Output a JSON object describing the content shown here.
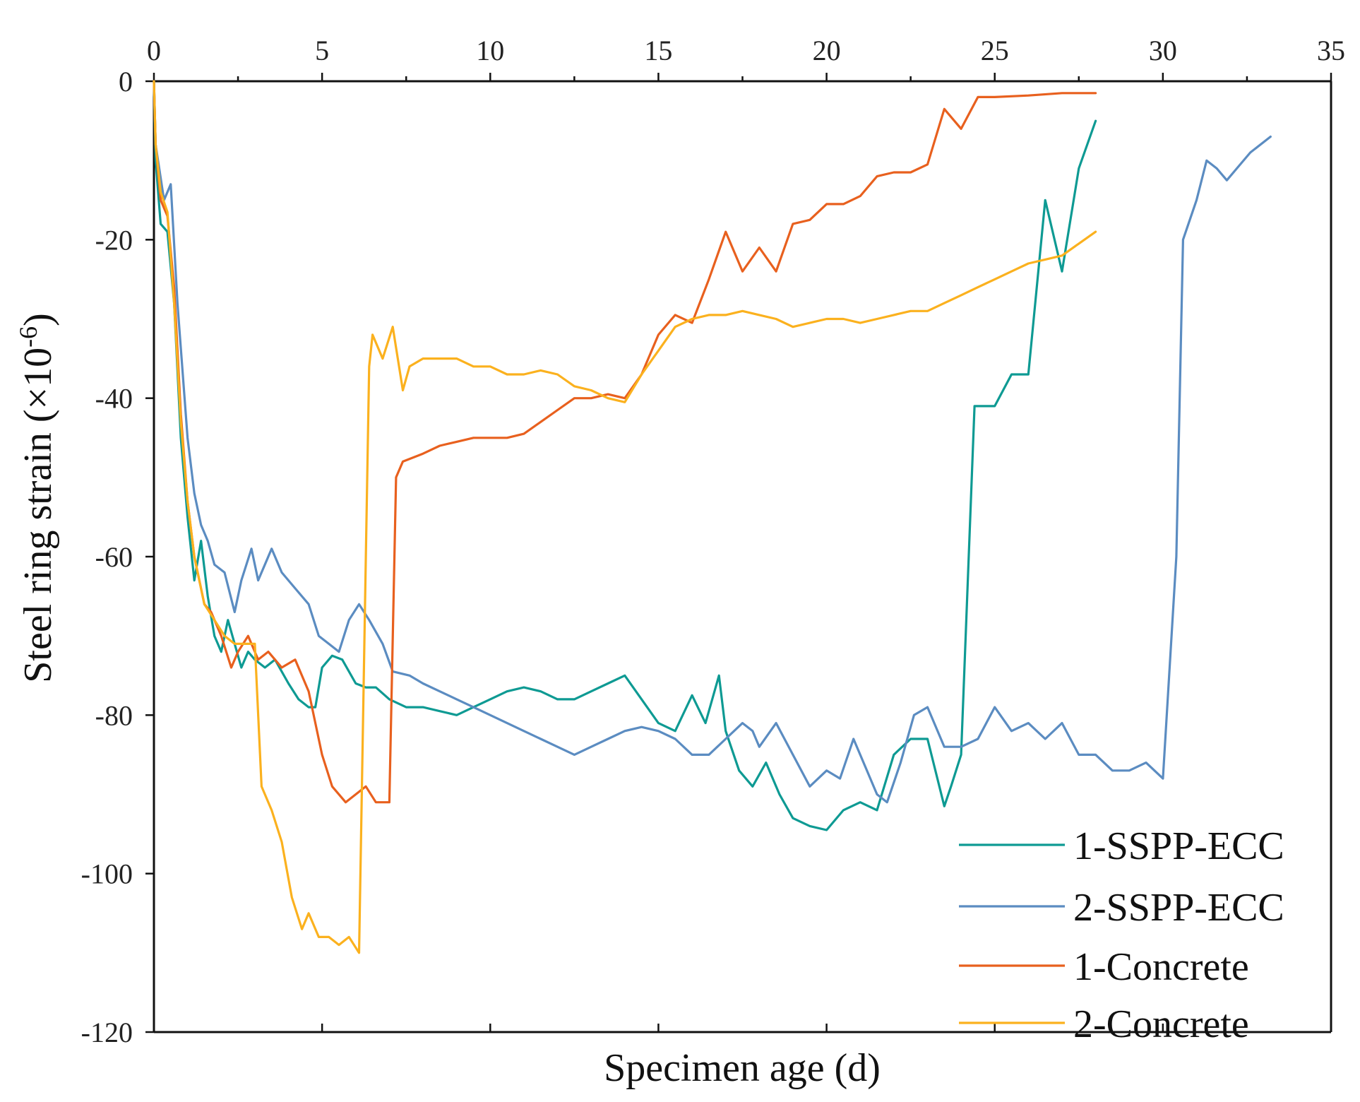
{
  "chart_data": {
    "type": "line",
    "title": "",
    "xlabel": "Specimen age (d)",
    "ylabel_main": "Steel ring strain (×10",
    "ylabel_sup": "-6",
    "ylabel_close": ")",
    "xlim": [
      0,
      35
    ],
    "ylim": [
      -120,
      0
    ],
    "x_ticks": [
      0,
      5,
      10,
      15,
      20,
      25,
      30,
      35
    ],
    "y_ticks": [
      0,
      -20,
      -40,
      -60,
      -80,
      -100,
      -120
    ],
    "x_tick_labels": [
      "0",
      "5",
      "10",
      "15",
      "20",
      "25",
      "30",
      "35"
    ],
    "y_tick_labels": [
      "0",
      "-20",
      "-40",
      "-60",
      "-80",
      "-100",
      "-120"
    ],
    "legend_position": "bottom-right",
    "series": [
      {
        "name": "1-SSPP-ECC",
        "color": "#0e9a93",
        "points": [
          [
            0,
            0
          ],
          [
            0.05,
            -10
          ],
          [
            0.2,
            -18
          ],
          [
            0.4,
            -19
          ],
          [
            0.6,
            -28
          ],
          [
            0.8,
            -45
          ],
          [
            1,
            -55
          ],
          [
            1.2,
            -63
          ],
          [
            1.4,
            -58
          ],
          [
            1.6,
            -65
          ],
          [
            1.8,
            -70
          ],
          [
            2,
            -72
          ],
          [
            2.2,
            -68
          ],
          [
            2.4,
            -71
          ],
          [
            2.6,
            -74
          ],
          [
            2.8,
            -72
          ],
          [
            3,
            -73
          ],
          [
            3.3,
            -74
          ],
          [
            3.6,
            -73
          ],
          [
            4,
            -76
          ],
          [
            4.3,
            -78
          ],
          [
            4.6,
            -79
          ],
          [
            4.8,
            -79
          ],
          [
            5,
            -74
          ],
          [
            5.3,
            -72.5
          ],
          [
            5.6,
            -73
          ],
          [
            6,
            -76
          ],
          [
            6.3,
            -76.5
          ],
          [
            6.6,
            -76.5
          ],
          [
            7,
            -78
          ],
          [
            7.5,
            -79
          ],
          [
            8,
            -79
          ],
          [
            8.5,
            -79.5
          ],
          [
            9,
            -80
          ],
          [
            9.5,
            -79
          ],
          [
            10,
            -78
          ],
          [
            10.5,
            -77
          ],
          [
            11,
            -76.5
          ],
          [
            11.5,
            -77
          ],
          [
            12,
            -78
          ],
          [
            12.5,
            -78
          ],
          [
            13,
            -77
          ],
          [
            13.5,
            -76
          ],
          [
            14,
            -75
          ],
          [
            14.5,
            -78
          ],
          [
            15,
            -81
          ],
          [
            15.5,
            -82
          ],
          [
            16,
            -77.5
          ],
          [
            16.4,
            -81
          ],
          [
            16.8,
            -75
          ],
          [
            17,
            -82
          ],
          [
            17.4,
            -87
          ],
          [
            17.8,
            -89
          ],
          [
            18.2,
            -86
          ],
          [
            18.6,
            -90
          ],
          [
            19,
            -93
          ],
          [
            19.5,
            -94
          ],
          [
            20,
            -94.5
          ],
          [
            20.5,
            -92
          ],
          [
            21,
            -91
          ],
          [
            21.5,
            -92
          ],
          [
            22,
            -85
          ],
          [
            22.5,
            -83
          ],
          [
            23,
            -83
          ],
          [
            23.5,
            -91.5
          ],
          [
            23.7,
            -89
          ],
          [
            24,
            -85
          ],
          [
            24.4,
            -41
          ],
          [
            25,
            -41
          ],
          [
            25.5,
            -37
          ],
          [
            26,
            -37
          ],
          [
            26.5,
            -15
          ],
          [
            27,
            -24
          ],
          [
            27.5,
            -11
          ],
          [
            28,
            -5
          ]
        ]
      },
      {
        "name": "2-SSPP-ECC",
        "color": "#5b8cc1",
        "points": [
          [
            0,
            0
          ],
          [
            0.05,
            -8
          ],
          [
            0.3,
            -15
          ],
          [
            0.5,
            -13
          ],
          [
            0.7,
            -28
          ],
          [
            1,
            -45
          ],
          [
            1.2,
            -52
          ],
          [
            1.4,
            -56
          ],
          [
            1.6,
            -58
          ],
          [
            1.8,
            -61
          ],
          [
            2.1,
            -62
          ],
          [
            2.4,
            -67
          ],
          [
            2.6,
            -63
          ],
          [
            2.9,
            -59
          ],
          [
            3.1,
            -63
          ],
          [
            3.5,
            -59
          ],
          [
            3.8,
            -62
          ],
          [
            4.2,
            -64
          ],
          [
            4.6,
            -66
          ],
          [
            4.9,
            -70
          ],
          [
            5.2,
            -71
          ],
          [
            5.5,
            -72
          ],
          [
            5.8,
            -68
          ],
          [
            6.1,
            -66
          ],
          [
            6.4,
            -68
          ],
          [
            6.8,
            -71
          ],
          [
            7.1,
            -74.5
          ],
          [
            7.6,
            -75
          ],
          [
            8,
            -76
          ],
          [
            8.5,
            -77
          ],
          [
            9,
            -78
          ],
          [
            9.5,
            -79
          ],
          [
            10,
            -80
          ],
          [
            10.5,
            -81
          ],
          [
            11,
            -82
          ],
          [
            11.5,
            -83
          ],
          [
            12,
            -84
          ],
          [
            12.5,
            -85
          ],
          [
            13,
            -84
          ],
          [
            13.5,
            -83
          ],
          [
            14,
            -82
          ],
          [
            14.5,
            -81.5
          ],
          [
            15,
            -82
          ],
          [
            15.5,
            -83
          ],
          [
            16,
            -85
          ],
          [
            16.5,
            -85
          ],
          [
            17,
            -83
          ],
          [
            17.5,
            -81
          ],
          [
            17.8,
            -82
          ],
          [
            18,
            -84
          ],
          [
            18.5,
            -81
          ],
          [
            19,
            -85
          ],
          [
            19.5,
            -89
          ],
          [
            20,
            -87
          ],
          [
            20.4,
            -88
          ],
          [
            20.8,
            -83
          ],
          [
            21.2,
            -87
          ],
          [
            21.5,
            -90
          ],
          [
            21.8,
            -91
          ],
          [
            22.2,
            -86
          ],
          [
            22.6,
            -80
          ],
          [
            23,
            -79
          ],
          [
            23.5,
            -84
          ],
          [
            24,
            -84
          ],
          [
            24.5,
            -83
          ],
          [
            25,
            -79
          ],
          [
            25.5,
            -82
          ],
          [
            26,
            -81
          ],
          [
            26.5,
            -83
          ],
          [
            27,
            -81
          ],
          [
            27.5,
            -85
          ],
          [
            28,
            -85
          ],
          [
            28.5,
            -87
          ],
          [
            29,
            -87
          ],
          [
            29.5,
            -86
          ],
          [
            30,
            -88
          ],
          [
            30.4,
            -60
          ],
          [
            30.6,
            -20
          ],
          [
            31,
            -15
          ],
          [
            31.3,
            -10
          ],
          [
            31.6,
            -11
          ],
          [
            31.9,
            -12.5
          ],
          [
            32.2,
            -11
          ],
          [
            32.6,
            -9
          ],
          [
            33.2,
            -7
          ]
        ]
      },
      {
        "name": "1-Concrete",
        "color": "#e8601e",
        "points": [
          [
            0,
            0
          ],
          [
            0.05,
            -8
          ],
          [
            0.2,
            -15
          ],
          [
            0.4,
            -17
          ],
          [
            0.6,
            -26
          ],
          [
            0.8,
            -42
          ],
          [
            1,
            -53
          ],
          [
            1.2,
            -60
          ],
          [
            1.5,
            -66
          ],
          [
            1.7,
            -67
          ],
          [
            2,
            -70
          ],
          [
            2.3,
            -74
          ],
          [
            2.5,
            -72
          ],
          [
            2.8,
            -70
          ],
          [
            3.1,
            -73
          ],
          [
            3.4,
            -72
          ],
          [
            3.8,
            -74
          ],
          [
            4.2,
            -73
          ],
          [
            4.6,
            -77
          ],
          [
            5,
            -85
          ],
          [
            5.3,
            -89
          ],
          [
            5.7,
            -91
          ],
          [
            6,
            -90
          ],
          [
            6.3,
            -89
          ],
          [
            6.6,
            -91
          ],
          [
            7,
            -91
          ],
          [
            7.2,
            -50
          ],
          [
            7.4,
            -48
          ],
          [
            8,
            -47
          ],
          [
            8.5,
            -46
          ],
          [
            9,
            -45.5
          ],
          [
            9.5,
            -45
          ],
          [
            10,
            -45
          ],
          [
            10.5,
            -45
          ],
          [
            11,
            -44.5
          ],
          [
            11.5,
            -43
          ],
          [
            12,
            -41.5
          ],
          [
            12.5,
            -40
          ],
          [
            13,
            -40
          ],
          [
            13.5,
            -39.5
          ],
          [
            14,
            -40
          ],
          [
            14.5,
            -37
          ],
          [
            15,
            -32
          ],
          [
            15.5,
            -29.5
          ],
          [
            16,
            -30.5
          ],
          [
            16.5,
            -25
          ],
          [
            17,
            -19
          ],
          [
            17.5,
            -24
          ],
          [
            18,
            -21
          ],
          [
            18.5,
            -24
          ],
          [
            19,
            -18
          ],
          [
            19.5,
            -17.5
          ],
          [
            20,
            -15.5
          ],
          [
            20.5,
            -15.5
          ],
          [
            21,
            -14.5
          ],
          [
            21.5,
            -12
          ],
          [
            22,
            -11.5
          ],
          [
            22.5,
            -11.5
          ],
          [
            23,
            -10.5
          ],
          [
            23.5,
            -3.5
          ],
          [
            24,
            -6
          ],
          [
            24.5,
            -2
          ],
          [
            25,
            -2
          ],
          [
            26,
            -1.8
          ],
          [
            27,
            -1.5
          ],
          [
            28,
            -1.5
          ]
        ]
      },
      {
        "name": "2-Concrete",
        "color": "#fbb11e",
        "points": [
          [
            0,
            0
          ],
          [
            0.05,
            -8
          ],
          [
            0.2,
            -14
          ],
          [
            0.4,
            -16.5
          ],
          [
            0.6,
            -28
          ],
          [
            0.8,
            -43
          ],
          [
            1,
            -53
          ],
          [
            1.2,
            -60
          ],
          [
            1.5,
            -66
          ],
          [
            1.8,
            -68
          ],
          [
            2.1,
            -70
          ],
          [
            2.4,
            -71
          ],
          [
            2.7,
            -71
          ],
          [
            3,
            -71
          ],
          [
            3.2,
            -89
          ],
          [
            3.5,
            -92
          ],
          [
            3.8,
            -96
          ],
          [
            4.1,
            -103
          ],
          [
            4.4,
            -107
          ],
          [
            4.6,
            -105
          ],
          [
            4.9,
            -108
          ],
          [
            5.2,
            -108
          ],
          [
            5.5,
            -109
          ],
          [
            5.8,
            -108
          ],
          [
            6.1,
            -110
          ],
          [
            6.3,
            -60
          ],
          [
            6.4,
            -36
          ],
          [
            6.5,
            -32
          ],
          [
            6.8,
            -35
          ],
          [
            7.1,
            -31
          ],
          [
            7.4,
            -39
          ],
          [
            7.6,
            -36
          ],
          [
            8,
            -35
          ],
          [
            8.5,
            -35
          ],
          [
            9,
            -35
          ],
          [
            9.5,
            -36
          ],
          [
            10,
            -36
          ],
          [
            10.5,
            -37
          ],
          [
            11,
            -37
          ],
          [
            11.5,
            -36.5
          ],
          [
            12,
            -37
          ],
          [
            12.5,
            -38.5
          ],
          [
            13,
            -39
          ],
          [
            13.5,
            -40
          ],
          [
            14,
            -40.5
          ],
          [
            14.5,
            -37
          ],
          [
            15,
            -34
          ],
          [
            15.5,
            -31
          ],
          [
            16,
            -30
          ],
          [
            16.5,
            -29.5
          ],
          [
            17,
            -29.5
          ],
          [
            17.5,
            -29
          ],
          [
            18,
            -29.5
          ],
          [
            18.5,
            -30
          ],
          [
            19,
            -31
          ],
          [
            19.5,
            -30.5
          ],
          [
            20,
            -30
          ],
          [
            20.5,
            -30
          ],
          [
            21,
            -30.5
          ],
          [
            21.5,
            -30
          ],
          [
            22,
            -29.5
          ],
          [
            22.5,
            -29
          ],
          [
            23,
            -29
          ],
          [
            23.5,
            -28
          ],
          [
            24,
            -27
          ],
          [
            24.5,
            -26
          ],
          [
            25,
            -25
          ],
          [
            25.5,
            -24
          ],
          [
            26,
            -23
          ],
          [
            26.5,
            -22.5
          ],
          [
            27,
            -22
          ],
          [
            27.5,
            -20.5
          ],
          [
            28,
            -19
          ]
        ]
      }
    ]
  }
}
